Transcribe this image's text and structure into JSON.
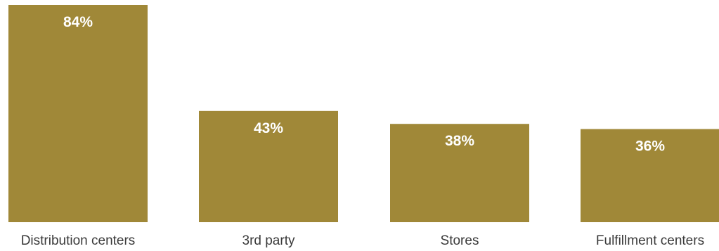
{
  "chart_data": {
    "type": "bar",
    "categories": [
      "Distribution centers",
      "3rd party",
      "Stores",
      "Fulfillment centers"
    ],
    "values": [
      84,
      43,
      38,
      36
    ],
    "data_labels": [
      "84%",
      "43%",
      "38%",
      "36%"
    ],
    "unit": "%",
    "title": "",
    "xlabel": "",
    "ylabel": "",
    "ylim": [
      0,
      84
    ],
    "grid": false,
    "legend": "none",
    "bar_color": "#a08838"
  }
}
